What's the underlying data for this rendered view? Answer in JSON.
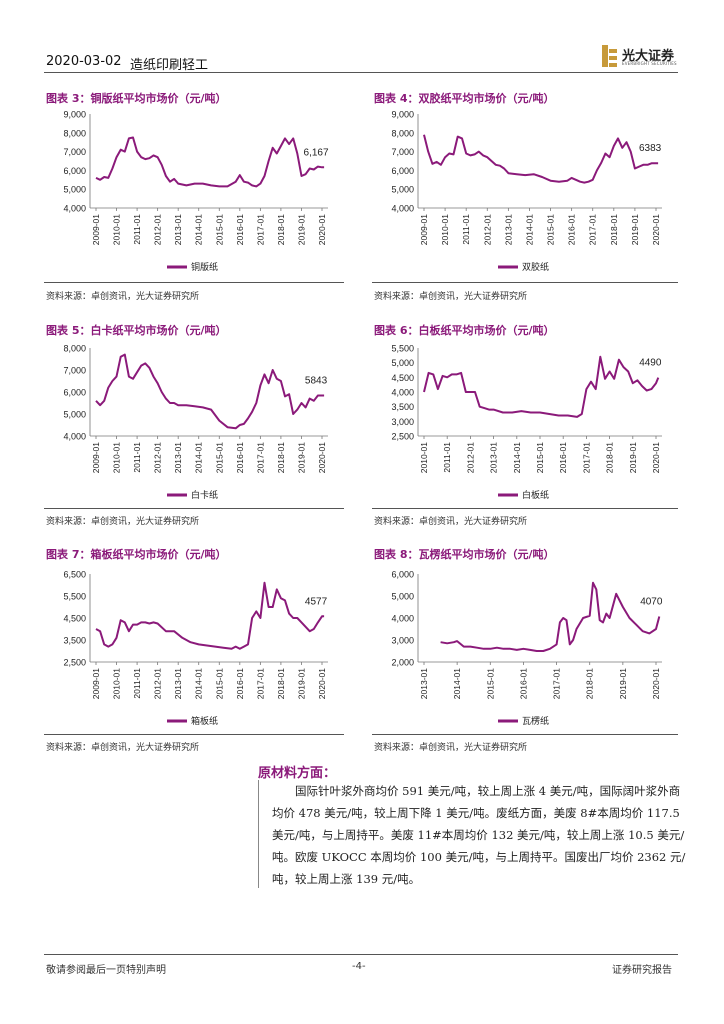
{
  "header": {
    "date": "2020-03-02",
    "sector": "造纸印刷轻工",
    "logo_cn": "光大证券",
    "logo_en": "EVERBRIGHT SECURITIES"
  },
  "charts": [
    {
      "title": "图表 3：铜版纸平均市场价（元/吨）",
      "source": "资料来源：卓创资讯，光大证券研究所",
      "chart_data": {
        "type": "line",
        "series_name": "铜版纸",
        "yticks": [
          "9,000",
          "8,000",
          "7,000",
          "6,000",
          "5,000",
          "4,000"
        ],
        "ylim": [
          4000,
          9000
        ],
        "xticks": [
          "2009-01",
          "2010-01",
          "2011-01",
          "2012-01",
          "2013-01",
          "2014-01",
          "2015-01",
          "2016-01",
          "2017-01",
          "2018-01",
          "2019-01",
          "2020-01"
        ],
        "x": [
          0,
          0.2,
          0.4,
          0.6,
          0.8,
          1.0,
          1.2,
          1.4,
          1.6,
          1.8,
          2.0,
          2.2,
          2.4,
          2.6,
          2.8,
          3.0,
          3.2,
          3.4,
          3.6,
          3.8,
          4.0,
          4.4,
          4.8,
          5.2,
          5.6,
          6.0,
          6.4,
          6.8,
          7.0,
          7.2,
          7.4,
          7.6,
          7.8,
          8.0,
          8.2,
          8.4,
          8.6,
          8.8,
          9.0,
          9.2,
          9.4,
          9.6,
          9.8,
          10.0,
          10.2,
          10.4,
          10.6,
          10.8,
          11.0,
          11.1
        ],
        "values": [
          5600,
          5500,
          5650,
          5600,
          6100,
          6700,
          7100,
          7000,
          7700,
          7750,
          7000,
          6700,
          6600,
          6650,
          6800,
          6700,
          6300,
          5700,
          5400,
          5550,
          5300,
          5200,
          5300,
          5300,
          5200,
          5150,
          5150,
          5400,
          5750,
          5400,
          5350,
          5200,
          5150,
          5300,
          5700,
          6500,
          7200,
          6900,
          7300,
          7700,
          7400,
          7700,
          6900,
          5700,
          5800,
          6100,
          6050,
          6200,
          6167,
          6167
        ],
        "label": "6,167"
      }
    },
    {
      "title": "图表 4：双胶纸平均市场价（元/吨）",
      "source": "资料来源：卓创资讯，光大证券研究所",
      "chart_data": {
        "type": "line",
        "series_name": "双胶纸",
        "yticks": [
          "9,000",
          "8,000",
          "7,000",
          "6,000",
          "5,000",
          "4,000"
        ],
        "ylim": [
          4000,
          9000
        ],
        "xticks": [
          "2009-01",
          "2010-01",
          "2011-01",
          "2012-01",
          "2013-01",
          "2014-01",
          "2015-01",
          "2016-01",
          "2017-01",
          "2018-01",
          "2019-01",
          "2020-01"
        ],
        "x": [
          0,
          0.2,
          0.4,
          0.6,
          0.8,
          1.0,
          1.2,
          1.4,
          1.6,
          1.8,
          2.0,
          2.2,
          2.4,
          2.6,
          2.8,
          3.0,
          3.2,
          3.4,
          3.6,
          3.8,
          4.0,
          4.4,
          4.8,
          5.2,
          5.6,
          6.0,
          6.4,
          6.8,
          7.0,
          7.2,
          7.4,
          7.6,
          7.8,
          8.0,
          8.2,
          8.4,
          8.6,
          8.8,
          9.0,
          9.2,
          9.4,
          9.6,
          9.8,
          10.0,
          10.2,
          10.4,
          10.6,
          10.8,
          11.0,
          11.1
        ],
        "values": [
          7900,
          7000,
          6350,
          6450,
          6300,
          6700,
          6900,
          6850,
          7800,
          7700,
          6900,
          6800,
          6850,
          7000,
          6800,
          6700,
          6500,
          6300,
          6250,
          6100,
          5850,
          5800,
          5750,
          5800,
          5650,
          5450,
          5400,
          5450,
          5600,
          5500,
          5400,
          5350,
          5400,
          5500,
          6000,
          6400,
          6900,
          6700,
          7300,
          7700,
          7200,
          7500,
          7000,
          6100,
          6200,
          6300,
          6300,
          6383,
          6383,
          6383
        ],
        "label": "6383"
      }
    },
    {
      "title": "图表 5：白卡纸平均市场价（元/吨）",
      "source": "资料来源：卓创资讯，光大证券研究所",
      "chart_data": {
        "type": "line",
        "series_name": "白卡纸",
        "yticks": [
          "8,000",
          "7,000",
          "6,000",
          "5,000",
          "4,000"
        ],
        "ylim": [
          4000,
          8000
        ],
        "xticks": [
          "2009-01",
          "2010-01",
          "2011-01",
          "2012-01",
          "2013-01",
          "2014-01",
          "2015-01",
          "2016-01",
          "2017-01",
          "2018-01",
          "2019-01",
          "2020-01"
        ],
        "x": [
          0,
          0.2,
          0.4,
          0.6,
          0.8,
          1.0,
          1.2,
          1.4,
          1.6,
          1.8,
          2.0,
          2.2,
          2.4,
          2.6,
          2.8,
          3.0,
          3.2,
          3.4,
          3.6,
          3.8,
          4.0,
          4.4,
          4.8,
          5.2,
          5.6,
          6.0,
          6.4,
          6.8,
          7.0,
          7.2,
          7.4,
          7.6,
          7.8,
          8.0,
          8.2,
          8.4,
          8.6,
          8.8,
          9.0,
          9.2,
          9.4,
          9.6,
          9.8,
          10.0,
          10.2,
          10.4,
          10.6,
          10.8,
          11.0,
          11.1
        ],
        "values": [
          5600,
          5400,
          5600,
          6200,
          6500,
          6700,
          7600,
          7700,
          6700,
          6600,
          6900,
          7200,
          7300,
          7100,
          6700,
          6400,
          6000,
          5700,
          5500,
          5500,
          5400,
          5400,
          5350,
          5300,
          5200,
          4700,
          4400,
          4350,
          4500,
          4550,
          4800,
          5100,
          5500,
          6300,
          6800,
          6400,
          7000,
          6600,
          6500,
          5800,
          5900,
          5000,
          5200,
          5500,
          5300,
          5700,
          5600,
          5843,
          5843,
          5843
        ],
        "label": "5843"
      }
    },
    {
      "title": "图表 6：白板纸平均市场价（元/吨）",
      "source": "资料来源：卓创资讯，光大证券研究所",
      "chart_data": {
        "type": "line",
        "series_name": "白板纸",
        "yticks": [
          "5,500",
          "5,000",
          "4,500",
          "4,000",
          "3,500",
          "3,000",
          "2,500"
        ],
        "ylim": [
          2500,
          5500
        ],
        "xticks": [
          "2010-01",
          "2011-01",
          "2012-01",
          "2013-01",
          "2014-01",
          "2015-01",
          "2016-01",
          "2017-01",
          "2018-01",
          "2019-01",
          "2020-01"
        ],
        "x": [
          0,
          0.2,
          0.4,
          0.6,
          0.8,
          1.0,
          1.2,
          1.4,
          1.6,
          1.8,
          2.0,
          2.2,
          2.4,
          2.6,
          2.8,
          3.0,
          3.4,
          3.8,
          4.2,
          4.6,
          5.0,
          5.4,
          5.8,
          6.2,
          6.6,
          6.8,
          7.0,
          7.2,
          7.4,
          7.6,
          7.8,
          8.0,
          8.2,
          8.4,
          8.6,
          8.8,
          9.0,
          9.2,
          9.4,
          9.6,
          9.8,
          10.0,
          10.1
        ],
        "values": [
          4000,
          4650,
          4600,
          4100,
          4550,
          4500,
          4600,
          4600,
          4650,
          4000,
          4000,
          4000,
          3500,
          3450,
          3400,
          3400,
          3300,
          3300,
          3350,
          3300,
          3300,
          3250,
          3200,
          3200,
          3150,
          3250,
          4100,
          4350,
          4100,
          5200,
          4450,
          4700,
          4450,
          5100,
          4850,
          4700,
          4300,
          4400,
          4200,
          4050,
          4100,
          4300,
          4490
        ],
        "label": "4490"
      }
    },
    {
      "title": "图表 7：箱板纸平均市场价（元/吨）",
      "source": "资料来源：卓创资讯，光大证券研究所",
      "chart_data": {
        "type": "line",
        "series_name": "箱板纸",
        "yticks": [
          "6,500",
          "5,500",
          "4,500",
          "3,500",
          "2,500"
        ],
        "ylim": [
          2500,
          6500
        ],
        "xticks": [
          "2009-01",
          "2010-01",
          "2011-01",
          "2012-01",
          "2013-01",
          "2014-01",
          "2015-01",
          "2016-01",
          "2017-01",
          "2018-01",
          "2019-01",
          "2020-01"
        ],
        "x": [
          0,
          0.2,
          0.4,
          0.6,
          0.8,
          1.0,
          1.2,
          1.4,
          1.6,
          1.8,
          2.0,
          2.2,
          2.4,
          2.6,
          2.8,
          3.0,
          3.4,
          3.8,
          4.2,
          4.6,
          5.0,
          5.4,
          5.8,
          6.2,
          6.6,
          6.8,
          7.0,
          7.2,
          7.4,
          7.6,
          7.8,
          8.0,
          8.2,
          8.4,
          8.6,
          8.8,
          9.0,
          9.2,
          9.4,
          9.6,
          9.8,
          10.0,
          10.2,
          10.4,
          10.6,
          10.8,
          11.0,
          11.1
        ],
        "values": [
          4000,
          3900,
          3300,
          3200,
          3300,
          3600,
          4400,
          4300,
          3900,
          4200,
          4200,
          4300,
          4300,
          4250,
          4300,
          4250,
          3900,
          3900,
          3600,
          3400,
          3300,
          3250,
          3200,
          3150,
          3100,
          3200,
          3100,
          3200,
          3300,
          4500,
          4800,
          4500,
          6100,
          5000,
          5000,
          5800,
          5400,
          5300,
          4700,
          4500,
          4500,
          4300,
          4100,
          3900,
          4000,
          4300,
          4577,
          4577
        ],
        "label": "4577"
      }
    },
    {
      "title": "图表 8：瓦楞纸平均市场价（元/吨）",
      "source": "资料来源：卓创资讯，光大证券研究所",
      "chart_data": {
        "type": "line",
        "series_name": "瓦楞纸",
        "yticks": [
          "6,000",
          "5,000",
          "4,000",
          "3,000",
          "2,000"
        ],
        "ylim": [
          2000,
          6000
        ],
        "xticks": [
          "2013-01",
          "2014-01",
          "2015-01",
          "2016-01",
          "2017-01",
          "2018-01",
          "2019-01",
          "2020-01"
        ],
        "x": [
          0.5,
          0.7,
          0.9,
          1.0,
          1.2,
          1.4,
          1.6,
          1.8,
          2.0,
          2.2,
          2.4,
          2.6,
          2.8,
          3.0,
          3.2,
          3.4,
          3.6,
          3.8,
          4.0,
          4.1,
          4.2,
          4.3,
          4.4,
          4.5,
          4.6,
          4.8,
          5.0,
          5.1,
          5.2,
          5.3,
          5.4,
          5.5,
          5.6,
          5.8,
          6.0,
          6.2,
          6.4,
          6.6,
          6.8,
          7.0,
          7.1
        ],
        "values": [
          2900,
          2850,
          2900,
          2950,
          2700,
          2700,
          2650,
          2600,
          2600,
          2650,
          2600,
          2600,
          2550,
          2600,
          2550,
          2500,
          2500,
          2600,
          2800,
          3800,
          4000,
          3900,
          2800,
          3000,
          3500,
          4000,
          4100,
          5600,
          5300,
          3900,
          3800,
          4200,
          4000,
          5100,
          4500,
          4000,
          3700,
          3400,
          3300,
          3500,
          4070
        ],
        "label": "4070"
      }
    }
  ],
  "raw_material": {
    "title": "原材料方面：",
    "paragraph": "国际针叶浆外商均价 591 美元/吨，较上周上涨 4 美元/吨，国际阔叶浆外商均价 478 美元/吨，较上周下降 1 美元/吨。废纸方面，美废 8#本周均价 117.5 美元/吨，与上周持平。美废 11#本周均价 132 美元/吨，较上周上涨 10.5 美元/吨。欧废 UKOCC 本周均价 100 美元/吨，与上周持平。国废出厂均价 2362 元/吨，较上周上涨 139 元/吨。"
  },
  "footer": {
    "left": "敬请参阅最后一页特别声明",
    "center": "-4-",
    "right": "证券研究报告"
  },
  "colors": {
    "series": "#8b1a7a",
    "axis": "#777777",
    "text": "#222222"
  }
}
